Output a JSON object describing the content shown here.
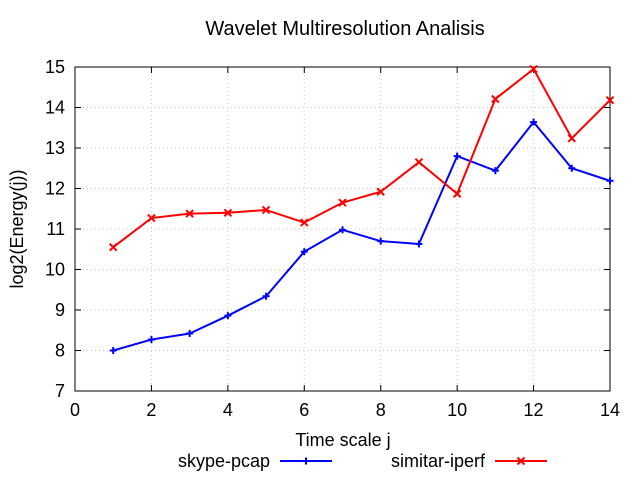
{
  "chart_data": {
    "type": "line",
    "title": "Wavelet Multiresolution Analisis",
    "xlabel": "Time scale j",
    "ylabel": "log2(Energy(j))",
    "xlim": [
      0,
      14
    ],
    "ylim": [
      7,
      15
    ],
    "xticks": [
      0,
      2,
      4,
      6,
      8,
      10,
      12,
      14
    ],
    "yticks": [
      7,
      8,
      9,
      10,
      11,
      12,
      13,
      14,
      15
    ],
    "grid": true,
    "legend_position": "bottom",
    "x": [
      1,
      2,
      3,
      4,
      5,
      6,
      7,
      8,
      9,
      10,
      11,
      12,
      13,
      14
    ],
    "series": [
      {
        "name": "skype-pcap",
        "color": "#0000ff",
        "marker": "plus",
        "values": [
          8.0,
          8.27,
          8.42,
          8.86,
          9.34,
          10.44,
          10.98,
          10.7,
          10.63,
          12.8,
          12.44,
          13.64,
          12.5,
          12.19
        ]
      },
      {
        "name": "simitar-iperf",
        "color": "#ff0000",
        "marker": "cross",
        "values": [
          10.55,
          11.27,
          11.38,
          11.4,
          11.47,
          11.16,
          11.65,
          11.92,
          12.65,
          11.87,
          14.21,
          14.95,
          13.24,
          14.18
        ]
      }
    ]
  }
}
